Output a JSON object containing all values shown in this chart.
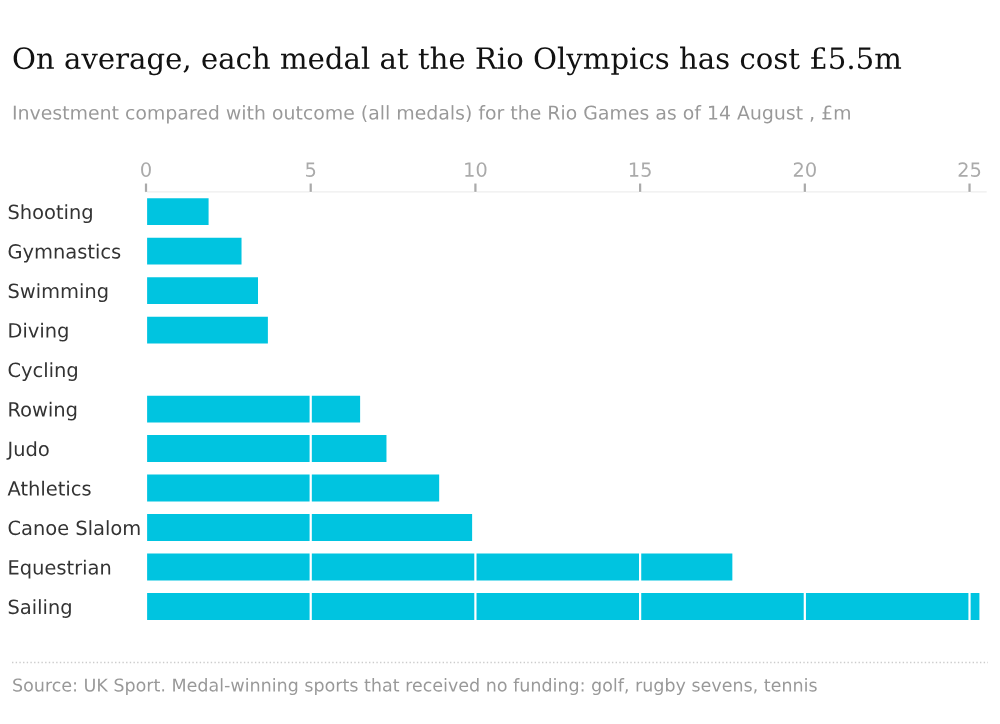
{
  "chart_data": {
    "type": "bar",
    "orientation": "horizontal",
    "title": "On average, each medal at the Rio Olympics has cost £5.5m",
    "subtitle": "Investment compared with outcome (all medals) for the Rio Games as of 14 August , £m",
    "categories": [
      "Shooting",
      "Gymnastics",
      "Swimming",
      "Diving",
      "Cycling",
      "Rowing",
      "Judo",
      "Athletics",
      "Canoe Slalom",
      "Equestrian",
      "Sailing"
    ],
    "values": [
      1.9,
      2.9,
      3.4,
      3.7,
      null,
      6.5,
      7.3,
      8.9,
      9.9,
      17.8,
      25.3
    ],
    "color": "#00c4e0",
    "xlim": [
      0,
      25.5
    ],
    "xticks": [
      0,
      5,
      10,
      15,
      20,
      25
    ],
    "grid": "x",
    "annotations": [
      "Source: UK Sport. Medal-winning sports that received no funding: golf, rugby sevens, tennis"
    ]
  }
}
